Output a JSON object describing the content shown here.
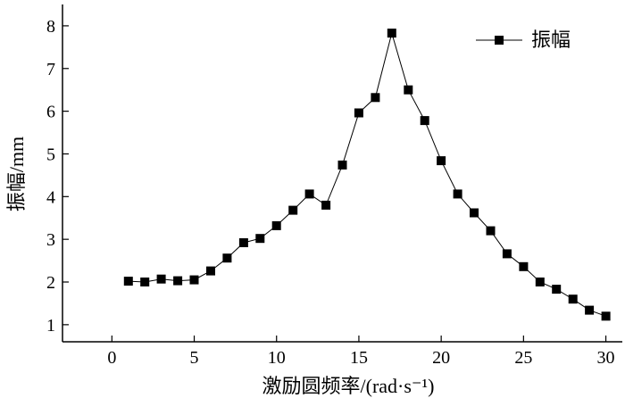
{
  "chart_data": {
    "type": "line",
    "title": "",
    "xlabel": "激励圆频率/(rad·s⁻¹)",
    "ylabel": "振幅/mm",
    "xlim": [
      -3,
      31
    ],
    "ylim": [
      0.6,
      8.5
    ],
    "x_ticks": [
      0,
      5,
      10,
      15,
      20,
      25,
      30
    ],
    "y_ticks": [
      1,
      2,
      3,
      4,
      5,
      6,
      7,
      8
    ],
    "grid": false,
    "legend_position": "top-right",
    "series": [
      {
        "name": "振幅",
        "marker": "square",
        "color": "#000000",
        "x": [
          1,
          2,
          3,
          4,
          5,
          6,
          7,
          8,
          9,
          10,
          11,
          12,
          13,
          14,
          15,
          16,
          17,
          18,
          19,
          20,
          21,
          22,
          23,
          24,
          25,
          26,
          27,
          28,
          29,
          30
        ],
        "y": [
          2.02,
          2.0,
          2.07,
          2.03,
          2.05,
          2.26,
          2.56,
          2.92,
          3.02,
          3.32,
          3.68,
          4.06,
          3.8,
          4.74,
          5.96,
          6.32,
          7.83,
          6.5,
          5.78,
          4.84,
          4.06,
          3.62,
          3.2,
          2.66,
          2.36,
          2.0,
          1.83,
          1.6,
          1.34,
          1.2
        ]
      }
    ]
  }
}
